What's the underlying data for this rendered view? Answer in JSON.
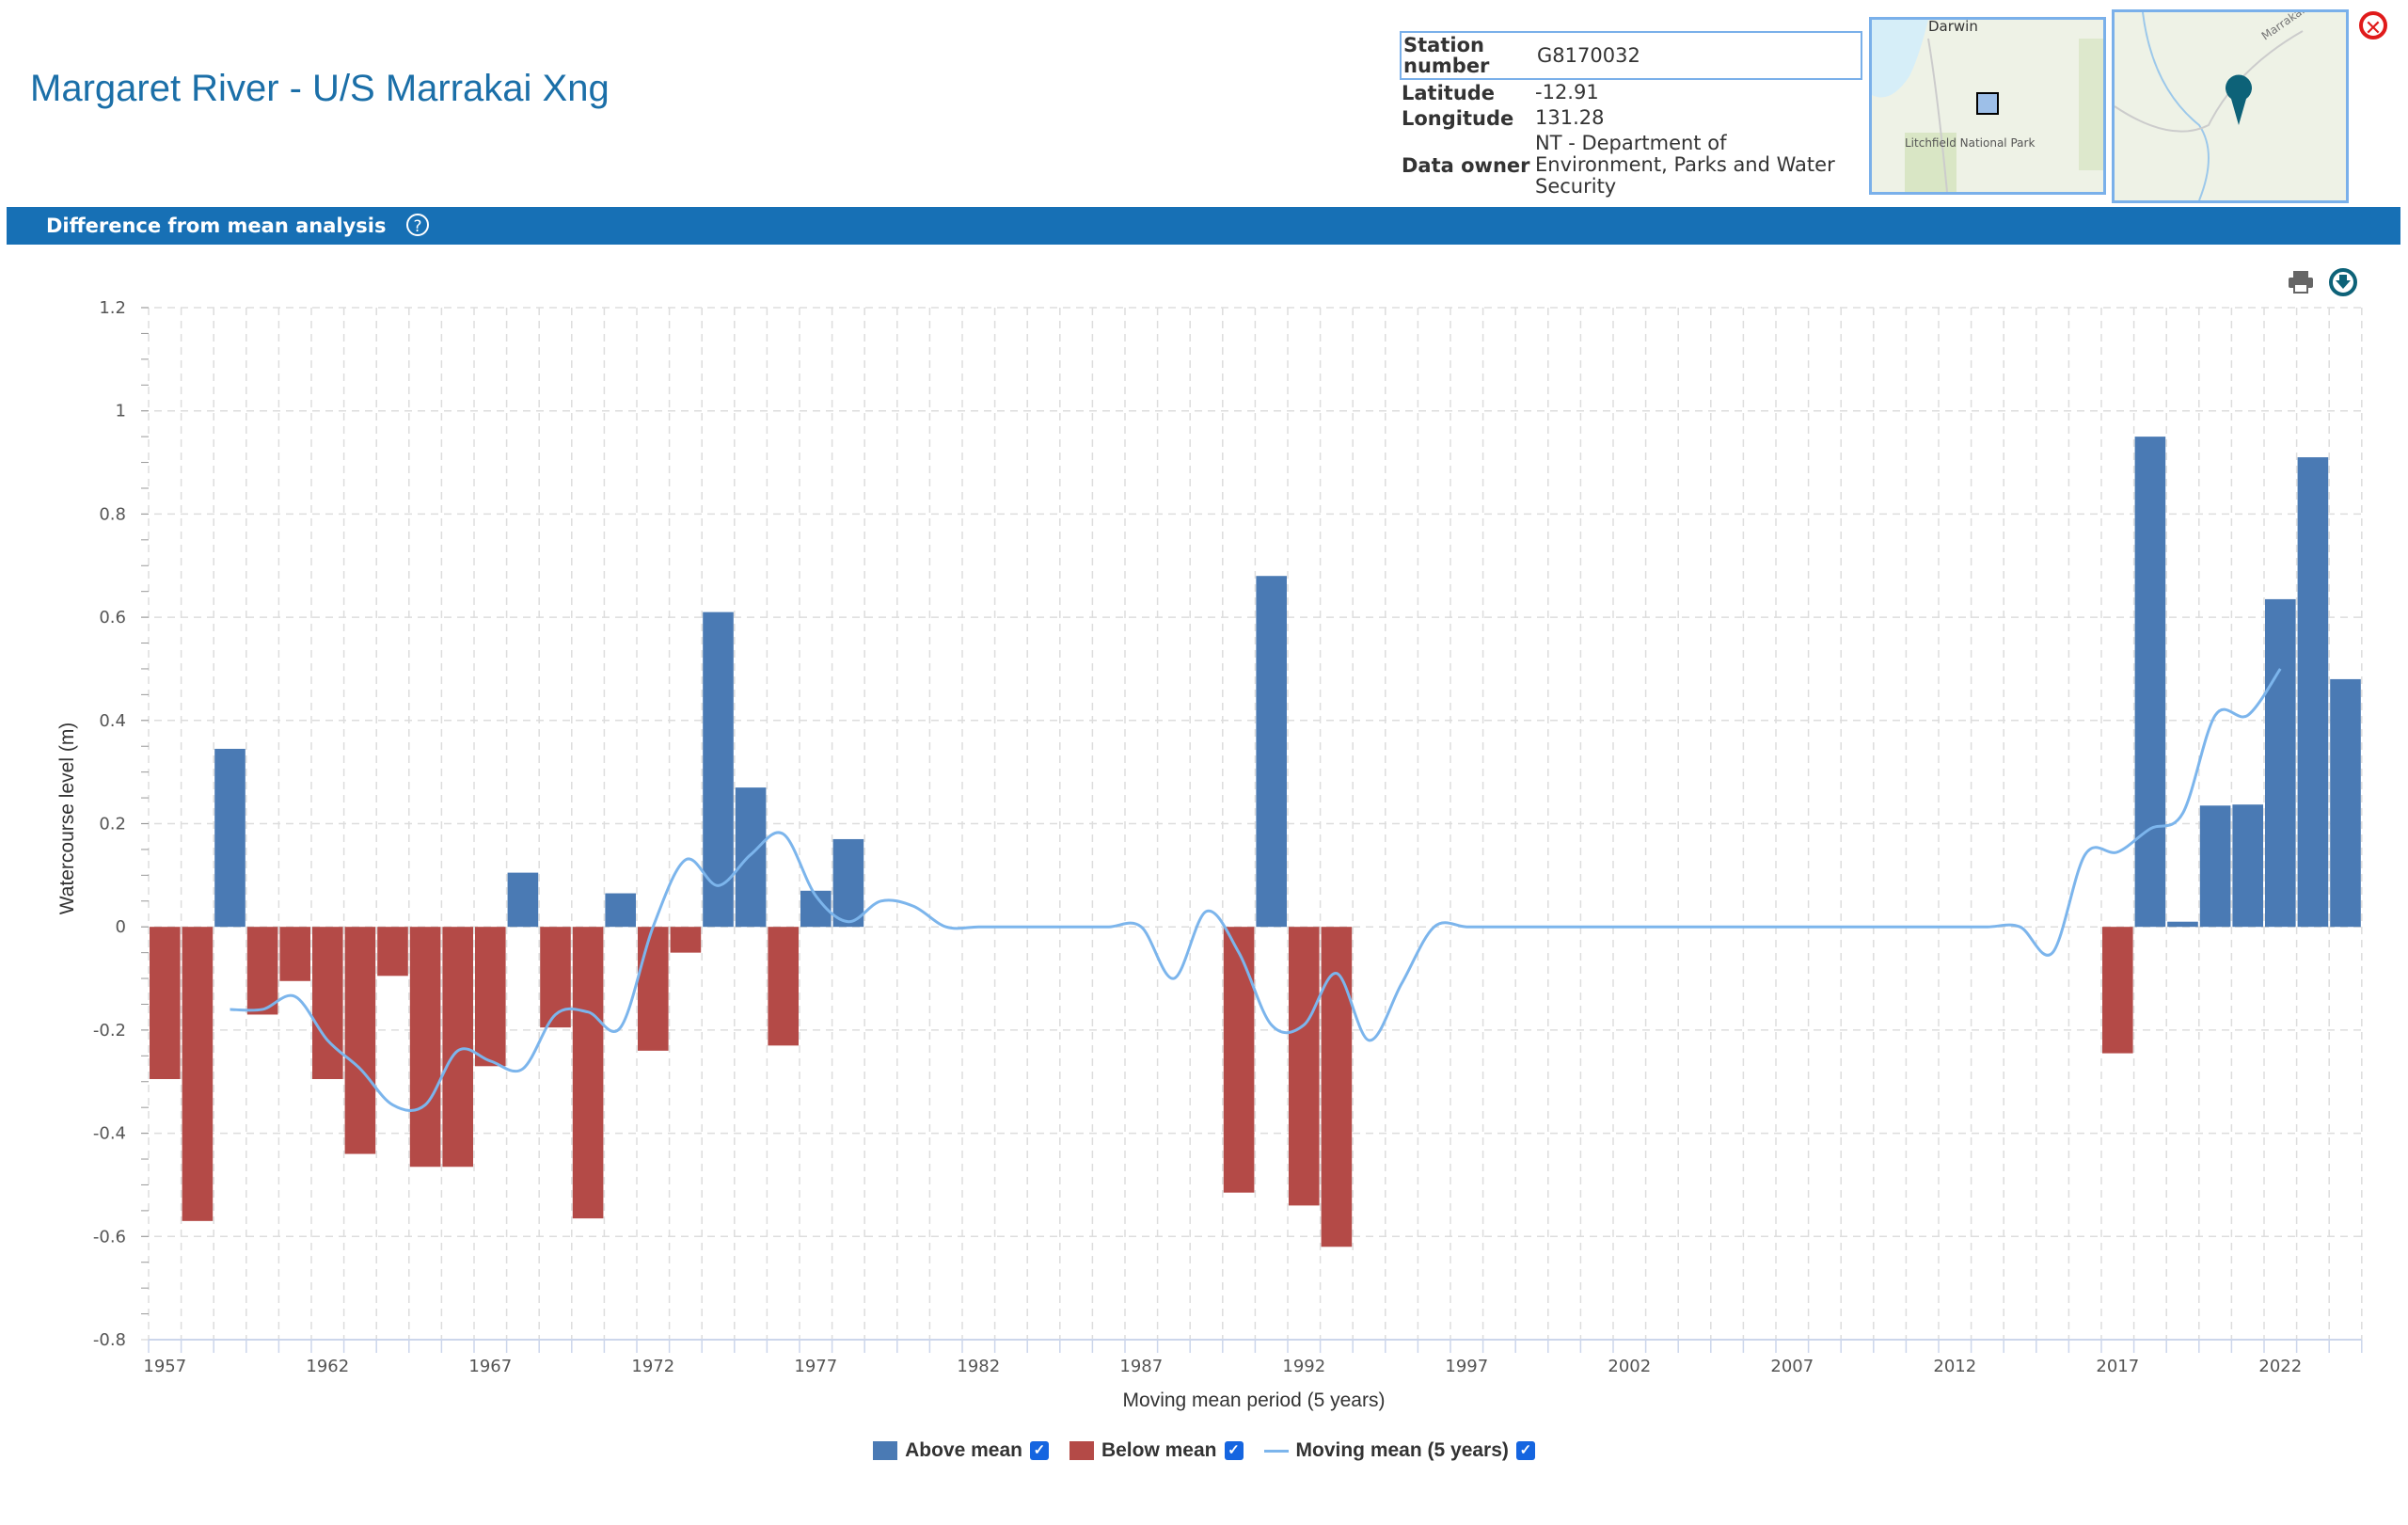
{
  "header": {
    "title": "Margaret River - U/S Marrakai Xng"
  },
  "info": [
    {
      "label": "Station number",
      "value": "G8170032"
    },
    {
      "label": "Latitude",
      "value": "-12.91"
    },
    {
      "label": "Longitude",
      "value": "131.28"
    },
    {
      "label": "Data owner",
      "value": "NT - Department of Environment, Parks and Water Security"
    }
  ],
  "maps": {
    "overview_labels": [
      "Darwin",
      "Litchfield National Park"
    ],
    "detail_label": "Marrakai Rd"
  },
  "section": {
    "title": "Difference from mean analysis",
    "help": "?"
  },
  "legend": [
    {
      "label": "Above mean",
      "color": "#4a7ab4",
      "checked": true
    },
    {
      "label": "Below mean",
      "color": "#b44a47",
      "checked": true
    },
    {
      "label": "Moving mean (5 years)",
      "color": "#7cb5ec",
      "checked": true
    }
  ],
  "chart_data": {
    "type": "bar",
    "title": "Difference from mean analysis",
    "xlabel": "Moving mean period (5 years)",
    "ylabel": "Watercourse level (m)",
    "ylim": [
      -0.8,
      1.2
    ],
    "yticks": [
      "1.2",
      "1",
      "0.8",
      "0.6",
      "0.4",
      "0.2",
      "0",
      "-0.2",
      "-0.4",
      "-0.6",
      "-0.8"
    ],
    "xtick_labels": [
      "1957",
      "1962",
      "1967",
      "1972",
      "1977",
      "1982",
      "1987",
      "1992",
      "1997",
      "2002",
      "2007",
      "2012",
      "2017",
      "2022"
    ],
    "grid": true,
    "legend_position": "bottom",
    "x_start": 1957,
    "values": [
      -0.295,
      -0.57,
      0.345,
      -0.17,
      -0.105,
      -0.295,
      -0.44,
      -0.095,
      -0.465,
      -0.465,
      -0.27,
      0.105,
      -0.195,
      -0.565,
      0.065,
      -0.24,
      -0.05,
      0.61,
      0.27,
      -0.23,
      0.07,
      0.17,
      0,
      0,
      0,
      0,
      0,
      0,
      0,
      0,
      0,
      0,
      0,
      -0.515,
      0.68,
      -0.54,
      -0.62,
      0,
      0,
      0,
      0,
      0,
      0,
      0,
      0,
      0,
      0,
      0,
      0,
      0,
      0,
      0,
      0,
      0,
      0,
      0,
      0,
      0,
      0,
      0,
      -0.245,
      0.95,
      0.01,
      0.235,
      0.237,
      0.635,
      0.91,
      0.48
    ],
    "moving_mean_start": 1959,
    "moving_mean": [
      -0.16,
      -0.16,
      -0.135,
      -0.22,
      -0.275,
      -0.345,
      -0.345,
      -0.24,
      -0.26,
      -0.275,
      -0.17,
      -0.165,
      -0.195,
      0.0,
      0.13,
      0.08,
      0.14,
      0.18,
      0.06,
      0.01,
      0.05,
      0.04,
      0.0,
      0,
      0,
      0,
      0,
      0,
      0,
      -0.1,
      0.03,
      -0.05,
      -0.19,
      -0.19,
      -0.09,
      -0.22,
      -0.11,
      0.0,
      0,
      0,
      0,
      0,
      0,
      0,
      0,
      0,
      0,
      0,
      0,
      0,
      0,
      0,
      0,
      0,
      0,
      0,
      -0.05,
      0.14,
      0.145,
      0.19,
      0.22,
      0.41,
      0.41,
      0.5
    ]
  }
}
